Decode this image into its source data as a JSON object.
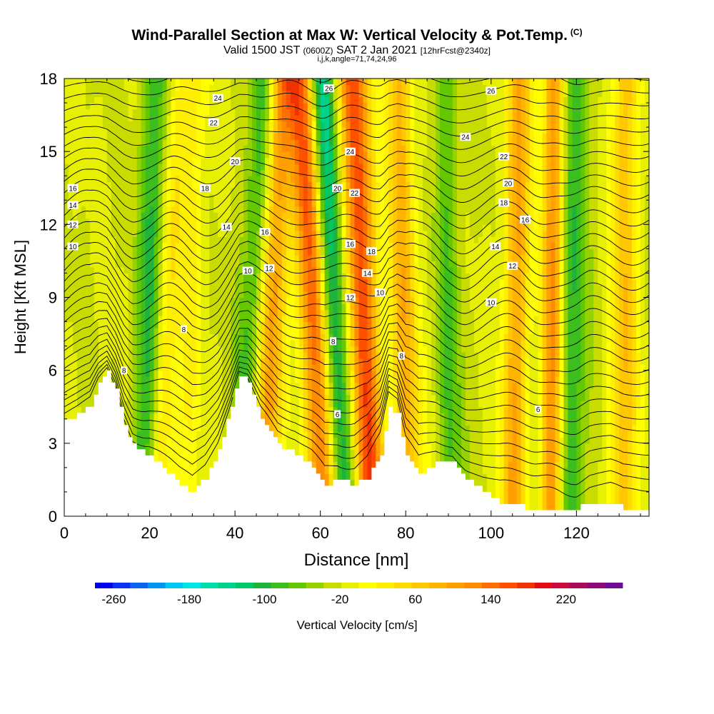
{
  "title": {
    "main": "Wind-Parallel Section at Max W: Vertical Velocity & Pot.Temp.",
    "tag": "(C)",
    "sub_a": "Valid 1500 JST",
    "sub_b": "(0600Z)",
    "sub_c": "SAT 2 Jan 2021",
    "sub_d": "[12hrFcst@2340z]",
    "ijk": "i,j,k,angle=71,74,24,96"
  },
  "chart_data": {
    "type": "heatmap",
    "xlabel": "Distance [nm]",
    "ylabel": "Height [Kft MSL]",
    "xlim": [
      0,
      137
    ],
    "ylim": [
      0,
      18
    ],
    "x_ticks": [
      0,
      20,
      40,
      60,
      80,
      100,
      120
    ],
    "y_ticks": [
      0,
      3,
      6,
      9,
      12,
      15,
      18
    ],
    "colorbar": {
      "label": "Vertical Velocity [cm/s]",
      "min": -280,
      "max": 280,
      "step": 20,
      "tick_labels": [
        "-260",
        "-180",
        "-100",
        "-20",
        "60",
        "140",
        "220"
      ],
      "tick_values": [
        -260,
        -180,
        -100,
        -20,
        60,
        140,
        220
      ],
      "colors": [
        "#0000f0",
        "#0a32f0",
        "#0a64f0",
        "#0096f0",
        "#00c8f0",
        "#00e6e6",
        "#00dcaa",
        "#00d28c",
        "#00c864",
        "#1eb43c",
        "#3cbe1e",
        "#64c800",
        "#96d200",
        "#c8dc00",
        "#e6f000",
        "#ffff00",
        "#fff000",
        "#ffdc00",
        "#ffc800",
        "#ffb400",
        "#ffa000",
        "#ff8c00",
        "#ff6e00",
        "#ff5000",
        "#f03200",
        "#e60a14",
        "#c80a3c",
        "#aa0a5a",
        "#8c0a78",
        "#6e0a96"
      ]
    },
    "terrain_kft": [
      [
        0,
        3.9
      ],
      [
        3,
        4.2
      ],
      [
        6,
        4.6
      ],
      [
        8,
        5.5
      ],
      [
        10,
        6.0
      ],
      [
        12,
        5.2
      ],
      [
        14,
        3.8
      ],
      [
        16,
        2.9
      ],
      [
        20,
        2.5
      ],
      [
        24,
        1.8
      ],
      [
        27,
        1.3
      ],
      [
        30,
        1.0
      ],
      [
        33,
        1.6
      ],
      [
        36,
        2.7
      ],
      [
        39,
        4.5
      ],
      [
        41,
        5.8
      ],
      [
        43,
        5.5
      ],
      [
        46,
        4.0
      ],
      [
        50,
        2.9
      ],
      [
        54,
        2.6
      ],
      [
        58,
        2.0
      ],
      [
        61,
        1.3
      ],
      [
        64,
        1.5
      ],
      [
        68,
        1.3
      ],
      [
        71,
        1.6
      ],
      [
        74,
        2.6
      ],
      [
        76,
        4.5
      ],
      [
        78,
        4.2
      ],
      [
        80,
        2.5
      ],
      [
        83,
        1.7
      ],
      [
        87,
        2.2
      ],
      [
        91,
        2.2
      ],
      [
        94,
        1.5
      ],
      [
        98,
        1.0
      ],
      [
        102,
        0.6
      ],
      [
        106,
        0.4
      ],
      [
        110,
        0.3
      ],
      [
        115,
        0.3
      ],
      [
        120,
        0.3
      ],
      [
        123,
        0.6
      ],
      [
        128,
        0.6
      ],
      [
        131,
        0.3
      ],
      [
        137,
        0.3
      ]
    ],
    "updrafts": [
      {
        "x_base": 22,
        "lean": 0.3,
        "width": 2.6,
        "w": 60
      },
      {
        "x_base": 28,
        "lean": 0.2,
        "width": 3,
        "w": 40
      },
      {
        "x_base": 46,
        "lean": 0.25,
        "width": 3.5,
        "w": 150
      },
      {
        "x_base": 62,
        "lean": -0.35,
        "width": 3.8,
        "w": 220
      },
      {
        "x_base": 72,
        "lean": -0.25,
        "width": 3.5,
        "w": 200
      },
      {
        "x_base": 81,
        "lean": -0.15,
        "width": 3.2,
        "w": 110
      },
      {
        "x_base": 105,
        "lean": 0.1,
        "width": 3,
        "w": 120
      },
      {
        "x_base": 114,
        "lean": 0.05,
        "width": 2.5,
        "w": 140
      },
      {
        "x_base": 131,
        "lean": 0.02,
        "width": 3,
        "w": 100
      }
    ],
    "downdrafts": [
      {
        "x_base": 18,
        "lean": 0.2,
        "width": 3,
        "w": -80
      },
      {
        "x_base": 42,
        "lean": 0.3,
        "width": 3.5,
        "w": -100
      },
      {
        "x_base": 65,
        "lean": -0.3,
        "width": 3.5,
        "w": -180
      },
      {
        "x_base": 91,
        "lean": -0.1,
        "width": 3,
        "w": -60
      },
      {
        "x_base": 119,
        "lean": 0.05,
        "width": 3,
        "w": -80
      }
    ],
    "isentrope_labels": [
      {
        "text": "24",
        "x": 36,
        "y": 17.2
      },
      {
        "text": "26",
        "x": 62,
        "y": 17.6
      },
      {
        "text": "26",
        "x": 100,
        "y": 17.5
      },
      {
        "text": "22",
        "x": 35,
        "y": 16.2
      },
      {
        "text": "24",
        "x": 94,
        "y": 15.6
      },
      {
        "text": "24",
        "x": 67,
        "y": 15.0
      },
      {
        "text": "20",
        "x": 40,
        "y": 14.6
      },
      {
        "text": "22",
        "x": 103,
        "y": 14.8
      },
      {
        "text": "16",
        "x": 2,
        "y": 13.5
      },
      {
        "text": "18",
        "x": 33,
        "y": 13.5
      },
      {
        "text": "20",
        "x": 64,
        "y": 13.5
      },
      {
        "text": "22",
        "x": 68,
        "y": 13.3
      },
      {
        "text": "20",
        "x": 104,
        "y": 13.7
      },
      {
        "text": "14",
        "x": 2,
        "y": 12.8
      },
      {
        "text": "18",
        "x": 103,
        "y": 12.9
      },
      {
        "text": "12",
        "x": 2,
        "y": 12.0
      },
      {
        "text": "14",
        "x": 38,
        "y": 11.9
      },
      {
        "text": "16",
        "x": 47,
        "y": 11.7
      },
      {
        "text": "16",
        "x": 108,
        "y": 12.2
      },
      {
        "text": "10",
        "x": 2,
        "y": 11.1
      },
      {
        "text": "16",
        "x": 67,
        "y": 11.2
      },
      {
        "text": "18",
        "x": 72,
        "y": 10.9
      },
      {
        "text": "14",
        "x": 101,
        "y": 11.1
      },
      {
        "text": "10",
        "x": 43,
        "y": 10.1
      },
      {
        "text": "12",
        "x": 48,
        "y": 10.2
      },
      {
        "text": "14",
        "x": 71,
        "y": 10.0
      },
      {
        "text": "12",
        "x": 105,
        "y": 10.3
      },
      {
        "text": "12",
        "x": 67,
        "y": 9.0
      },
      {
        "text": "10",
        "x": 74,
        "y": 9.2
      },
      {
        "text": "10",
        "x": 100,
        "y": 8.8
      },
      {
        "text": "8",
        "x": 28,
        "y": 7.7
      },
      {
        "text": "8",
        "x": 63,
        "y": 7.2
      },
      {
        "text": "8",
        "x": 79,
        "y": 6.6
      },
      {
        "text": "8",
        "x": 14,
        "y": 6.0
      },
      {
        "text": "6",
        "x": 64,
        "y": 4.2
      },
      {
        "text": "6",
        "x": 111,
        "y": 4.4
      }
    ]
  }
}
